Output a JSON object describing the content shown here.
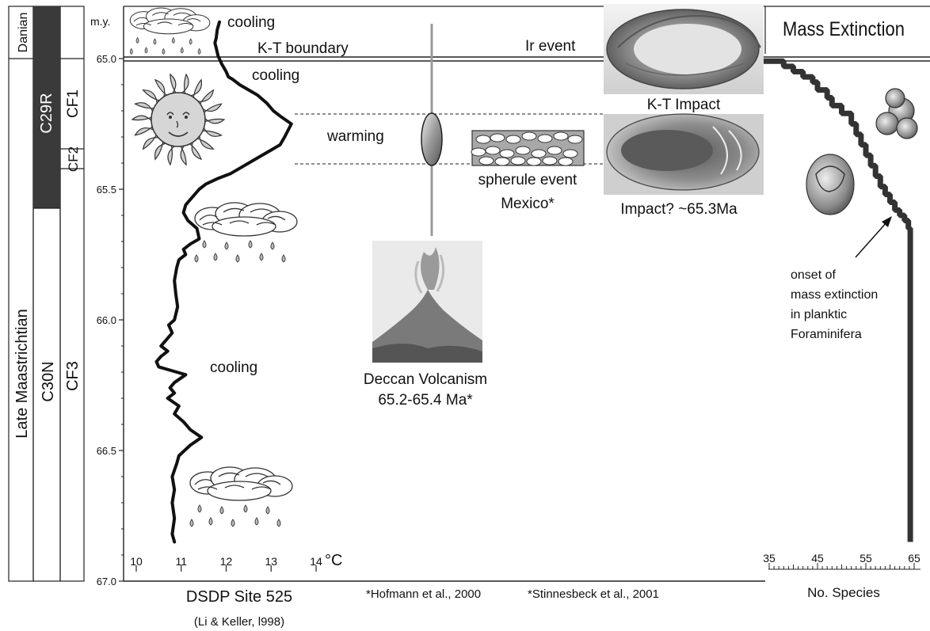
{
  "chart_data": [
    {
      "type": "line",
      "title": "DSDP Site 525",
      "subtitle": "(Li & Keller, l998)",
      "xlabel": "°C",
      "ylabel": "m.y.",
      "x_ticks": [
        10,
        11,
        12,
        13,
        14
      ],
      "y_ticks": [
        "65.0",
        "65.5",
        "66.0",
        "66.5",
        "67.0"
      ],
      "xlim": [
        9.85,
        15.2
      ],
      "ylim": [
        64.85,
        67.0
      ],
      "y_inverted": true,
      "series": [
        {
          "points": [
            [
              11.85,
              64.86
            ],
            [
              11.8,
              64.89
            ],
            [
              11.78,
              64.92
            ],
            [
              11.75,
              64.94
            ],
            [
              11.78,
              64.96
            ],
            [
              11.82,
              64.99
            ],
            [
              11.9,
              65.02
            ],
            [
              12.0,
              65.05
            ],
            [
              12.05,
              65.07
            ],
            [
              12.15,
              65.08
            ],
            [
              12.3,
              65.1
            ],
            [
              12.5,
              65.12
            ],
            [
              12.7,
              65.14
            ],
            [
              12.9,
              65.17
            ],
            [
              13.05,
              65.2
            ],
            [
              13.2,
              65.22
            ],
            [
              13.45,
              65.25
            ],
            [
              13.3,
              65.3
            ],
            [
              13.2,
              65.33
            ],
            [
              13.0,
              65.35
            ],
            [
              12.7,
              65.38
            ],
            [
              12.4,
              65.41
            ],
            [
              12.1,
              65.44
            ],
            [
              11.8,
              65.46
            ],
            [
              11.55,
              65.48
            ],
            [
              11.4,
              65.5
            ],
            [
              11.25,
              65.53
            ],
            [
              11.1,
              65.56
            ],
            [
              11.05,
              65.59
            ],
            [
              11.15,
              65.62
            ],
            [
              11.35,
              65.65
            ],
            [
              11.4,
              65.69
            ],
            [
              11.2,
              65.71
            ],
            [
              11.05,
              65.73
            ],
            [
              11.1,
              65.75
            ],
            [
              10.95,
              65.77
            ],
            [
              10.9,
              65.8
            ],
            [
              10.85,
              65.85
            ],
            [
              10.88,
              65.9
            ],
            [
              10.92,
              65.95
            ],
            [
              10.85,
              66.0
            ],
            [
              10.72,
              66.02
            ],
            [
              10.8,
              66.05
            ],
            [
              10.65,
              66.08
            ],
            [
              10.55,
              66.1
            ],
            [
              10.7,
              66.12
            ],
            [
              10.55,
              66.14
            ],
            [
              10.45,
              66.16
            ],
            [
              10.5,
              66.18
            ],
            [
              10.9,
              66.2
            ],
            [
              11.1,
              66.21
            ],
            [
              10.85,
              66.24
            ],
            [
              10.75,
              66.26
            ],
            [
              10.85,
              66.28
            ],
            [
              10.7,
              66.3
            ],
            [
              10.95,
              66.33
            ],
            [
              10.85,
              66.36
            ],
            [
              11.05,
              66.39
            ],
            [
              11.2,
              66.42
            ],
            [
              11.45,
              66.45
            ],
            [
              11.2,
              66.48
            ],
            [
              10.95,
              66.52
            ],
            [
              10.9,
              66.55
            ],
            [
              10.8,
              66.6
            ],
            [
              10.85,
              66.65
            ],
            [
              10.8,
              66.7
            ],
            [
              10.85,
              66.76
            ],
            [
              10.8,
              66.82
            ],
            [
              10.85,
              66.85
            ]
          ]
        }
      ]
    },
    {
      "type": "line",
      "xlabel": "No. Species",
      "x_ticks": [
        35,
        45,
        55,
        65
      ],
      "xlim": [
        33,
        69
      ],
      "ylim": [
        64.85,
        67.0
      ],
      "y_inverted": true,
      "series": [
        {
          "points": [
            [
              33,
              65.0
            ],
            [
              38,
              65.01
            ],
            [
              40,
              65.03
            ],
            [
              42,
              65.05
            ],
            [
              44,
              65.07
            ],
            [
              45,
              65.09
            ],
            [
              47,
              65.12
            ],
            [
              48,
              65.15
            ],
            [
              50,
              65.18
            ],
            [
              52,
              65.21
            ],
            [
              53,
              65.25
            ],
            [
              54,
              65.29
            ],
            [
              55,
              65.33
            ],
            [
              56,
              65.37
            ],
            [
              57,
              65.41
            ],
            [
              58,
              65.45
            ],
            [
              59,
              65.49
            ],
            [
              60,
              65.52
            ],
            [
              61,
              65.55
            ],
            [
              62,
              65.58
            ],
            [
              63,
              65.6
            ],
            [
              63.8,
              65.62
            ],
            [
              64.2,
              65.65
            ],
            [
              64.2,
              65.9
            ],
            [
              64.2,
              66.2
            ],
            [
              64.2,
              66.5
            ],
            [
              64.2,
              66.85
            ]
          ]
        }
      ]
    }
  ],
  "stratigraphy": {
    "danian": "Danian",
    "maastrichtian": "Late Maastrichtian",
    "chrons": [
      "C29R",
      "C30N"
    ],
    "zones": [
      "CF1",
      "CF2",
      "CF3"
    ]
  },
  "annotations": {
    "cooling_top": "cooling",
    "kt_boundary": "K-T boundary",
    "ir_event": "Ir event",
    "mass_extinction": "Mass Extinction",
    "cooling_2": "cooling",
    "kt_impact": "K-T Impact",
    "warming": "warming",
    "spherule_event": "spherule event",
    "mexico": "Mexico*",
    "impact_653": "Impact? ~65.3Ma",
    "cooling_3": "cooling",
    "deccan": "Deccan Volcanism",
    "deccan_age": "65.2-65.4 Ma*",
    "onset": [
      "onset of",
      "mass extinction",
      "in planktic",
      "Foraminifera"
    ],
    "footnote_1": "*Hofmann et al., 2000",
    "footnote_2": "*Stinnesbeck et al., 2001"
  },
  "colors": {
    "line": "#111111",
    "species_line": "#333333",
    "chron_black": "#3a3a3a",
    "volcano_pole": "#999999"
  }
}
